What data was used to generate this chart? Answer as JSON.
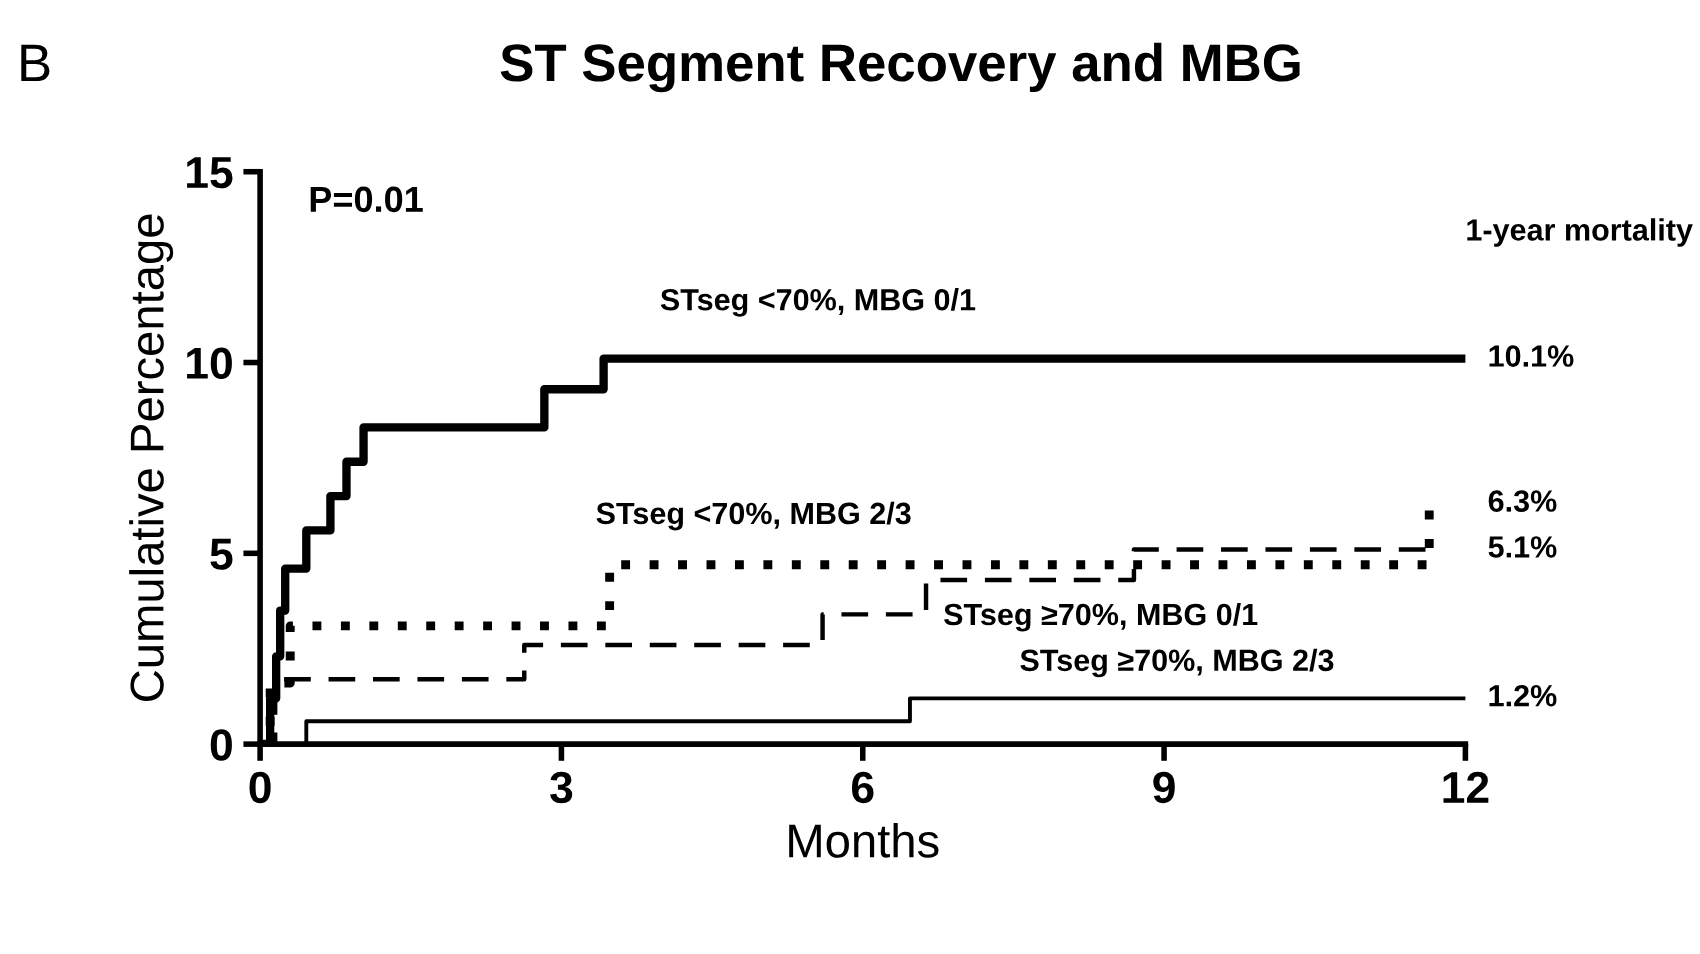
{
  "chart_data": {
    "type": "step",
    "title": "ST Segment Recovery and MBG",
    "xlabel": "Months",
    "ylabel": "Cumulative Percentage",
    "xlim": [
      0,
      12
    ],
    "ylim": [
      0,
      15
    ],
    "xticks": [
      0,
      3,
      6,
      9,
      12
    ],
    "yticks": [
      0,
      5,
      10,
      15
    ],
    "grid": false,
    "legend": false,
    "series": [
      {
        "name": "STseg <70%, MBG 0/1",
        "color": "#000000",
        "line_style": "solid",
        "x": [
          0,
          0.1,
          0.16,
          0.2,
          0.25,
          0.46,
          0.7,
          0.86,
          1.03,
          2.83,
          3.42,
          12
        ],
        "values": [
          0,
          1.2,
          2.3,
          3.5,
          4.6,
          5.6,
          6.5,
          7.4,
          8.3,
          9.3,
          10.1,
          10.1
        ]
      },
      {
        "name": "STseg <70%, MBG 2/3",
        "color": "#000000",
        "line_style": "dotted",
        "x": [
          0,
          0.1,
          0.3,
          3.48,
          11.64,
          11.7
        ],
        "values": [
          0,
          1.6,
          3.1,
          4.7,
          6.3,
          6.3
        ]
      },
      {
        "name": "STseg ≥70%, MBG 0/1",
        "color": "#000000",
        "line_style": "dashed",
        "x": [
          0,
          0.15,
          2.63,
          5.6,
          6.63,
          8.7,
          11.7
        ],
        "values": [
          0,
          1.7,
          2.6,
          3.4,
          4.3,
          5.1,
          5.1
        ]
      },
      {
        "name": "STseg ≥70%, MBG 2/3",
        "color": "#000000",
        "line_style": "solid",
        "x": [
          0,
          0.46,
          6.47,
          12
        ],
        "values": [
          0,
          0.6,
          1.2,
          1.2
        ]
      }
    ],
    "annotations": [
      "B",
      "P=0.01",
      "1-year mortality",
      "10.1%",
      "6.3%",
      "5.1%",
      "1.2%"
    ]
  }
}
